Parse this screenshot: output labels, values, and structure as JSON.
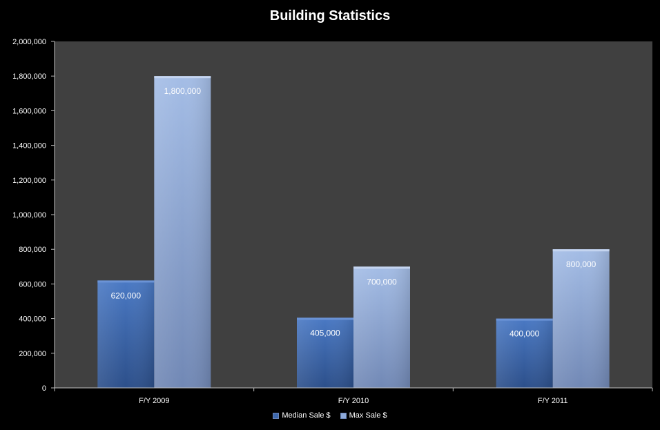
{
  "chart_data": {
    "type": "bar",
    "title": "Building Statistics",
    "xlabel": "",
    "ylabel": "",
    "categories": [
      "F/Y 2009",
      "F/Y 2010",
      "F/Y 2011"
    ],
    "series": [
      {
        "name": "Median Sale $",
        "values": [
          620000,
          405000,
          400000
        ],
        "labels": [
          "620,000",
          "405,000",
          "400,000"
        ],
        "color": "#3d68ae"
      },
      {
        "name": "Max Sale $",
        "values": [
          1800000,
          700000,
          800000
        ],
        "labels": [
          "1,800,000",
          "700,000",
          "800,000"
        ],
        "color": "#8eaadb"
      }
    ],
    "ylim": [
      0,
      2000000
    ],
    "yticks": [
      0,
      200000,
      400000,
      600000,
      800000,
      1000000,
      1200000,
      1400000,
      1600000,
      1800000,
      2000000
    ],
    "ytick_labels": [
      "0",
      "200,000",
      "400,000",
      "600,000",
      "800,000",
      "1,000,000",
      "1,200,000",
      "1,400,000",
      "1,600,000",
      "1,800,000",
      "2,000,000"
    ],
    "grid": false,
    "legend": "bottom",
    "plot_background": "#404040",
    "background": "#000000"
  }
}
